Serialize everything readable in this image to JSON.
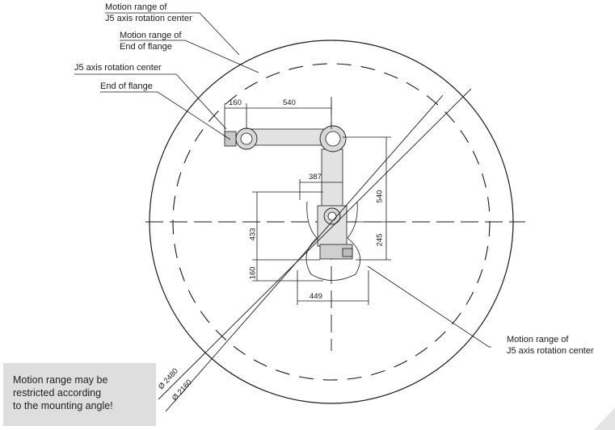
{
  "labels": {
    "j5_outer_range": "Motion range of\nJ5 axis rotation center",
    "flange_range": "Motion range of\nEnd of flange",
    "j5_center": "J5 axis rotation center",
    "end_of_flange": "End of flange",
    "j5_range_bottom": "Motion range of\nJ5 axis rotation center"
  },
  "dimensions": {
    "d160_top": "160",
    "d540_top": "540",
    "d387": "387",
    "d540_right": "540",
    "d433": "433",
    "d245": "245",
    "d160_left": "160",
    "d449": "449",
    "dia2480": "Ø 2480",
    "dia2160": "Ø 2160"
  },
  "note": {
    "text": "Motion range may be\nrestricted according\nto the mounting angle!"
  },
  "colors": {
    "line": "#1a1a1a",
    "robot_body": "#d8d8d8",
    "note_bg": "#dedede"
  }
}
